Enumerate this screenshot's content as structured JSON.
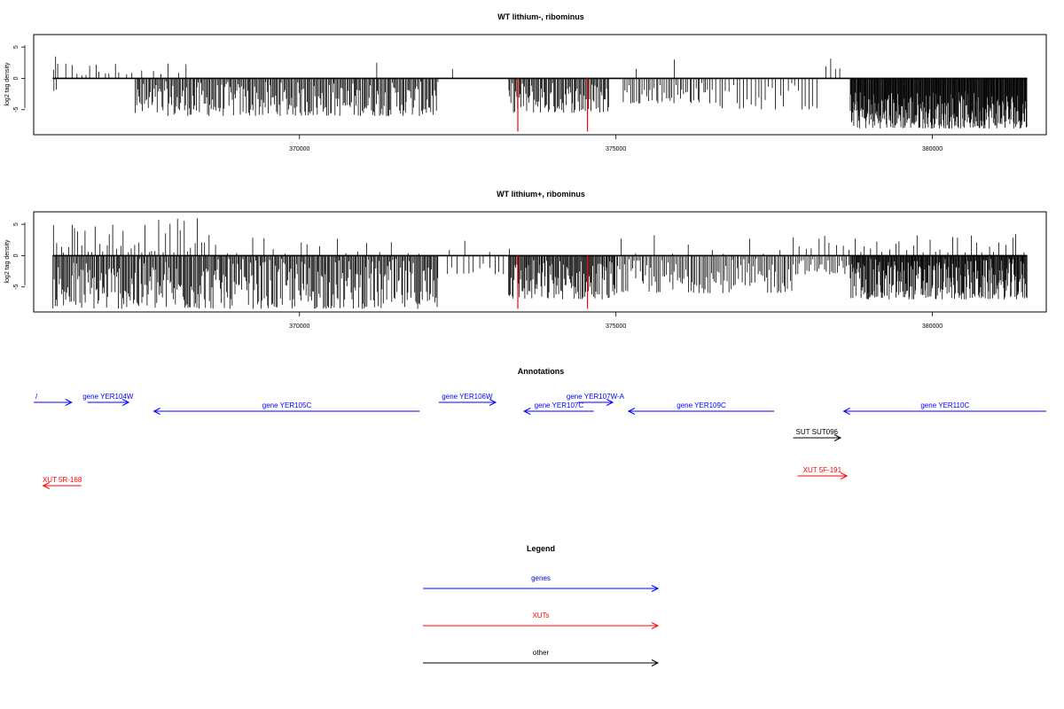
{
  "chart_data": [
    {
      "type": "bar",
      "title": "WT lithium-, ribominus",
      "ylabel": "log2 tag density",
      "xlim": [
        365800,
        381800
      ],
      "ylim": [
        -9,
        7
      ],
      "x_ticks": [
        370000,
        375000,
        380000
      ],
      "y_ticks": [
        -5,
        0,
        5
      ],
      "y_tick_labels": [
        "-5",
        "0",
        "5"
      ],
      "baseline_x": [
        366100,
        381500
      ],
      "red_markers": [
        {
          "x": 373450,
          "y": -8.5
        },
        {
          "x": 374550,
          "y": -8.5
        }
      ],
      "positive_segments": [
        {
          "x0": 366100,
          "x1": 366200,
          "count": 3,
          "min": 1,
          "max": 3.5
        },
        {
          "x0": 366300,
          "x1": 367200,
          "count": 12,
          "min": 0.3,
          "max": 2.8
        },
        {
          "x0": 367200,
          "x1": 368300,
          "count": 8,
          "min": 0.5,
          "max": 2.8
        },
        {
          "x0": 371200,
          "x1": 371250,
          "count": 1,
          "min": 2.5,
          "max": 2.6
        },
        {
          "x0": 372400,
          "x1": 372450,
          "count": 1,
          "min": 1.5,
          "max": 1.6
        },
        {
          "x0": 375300,
          "x1": 375350,
          "count": 1,
          "min": 1.5,
          "max": 1.6
        },
        {
          "x0": 375900,
          "x1": 375950,
          "count": 1,
          "min": 3,
          "max": 3.2
        },
        {
          "x0": 378300,
          "x1": 378600,
          "count": 4,
          "min": 1.5,
          "max": 3.3
        }
      ],
      "negative_segments": [
        {
          "x0": 366100,
          "x1": 366200,
          "count": 2,
          "min": -2,
          "max": -0.5
        },
        {
          "x0": 367400,
          "x1": 372200,
          "count": 260,
          "min": -6,
          "max": -0.5
        },
        {
          "x0": 373300,
          "x1": 374900,
          "count": 90,
          "min": -5.5,
          "max": -0.5
        },
        {
          "x0": 375100,
          "x1": 376500,
          "count": 45,
          "min": -4,
          "max": -0.5
        },
        {
          "x0": 376500,
          "x1": 378200,
          "count": 30,
          "min": -5,
          "max": -0.5
        },
        {
          "x0": 378700,
          "x1": 381500,
          "count": 300,
          "min": -8,
          "max": -2
        }
      ]
    },
    {
      "type": "bar",
      "title": "WT lithium+, ribominus",
      "ylabel": "log2 tag density",
      "xlim": [
        365800,
        381800
      ],
      "ylim": [
        -9,
        7
      ],
      "x_ticks": [
        370000,
        375000,
        380000
      ],
      "y_ticks": [
        -5,
        0,
        5
      ],
      "y_tick_labels": [
        "-5",
        "0",
        "5"
      ],
      "baseline_x": [
        366100,
        381500
      ],
      "red_markers": [
        {
          "x": 373450,
          "y": -8.5
        },
        {
          "x": 374550,
          "y": -8.5
        }
      ],
      "positive_segments": [
        {
          "x0": 366100,
          "x1": 368600,
          "count": 45,
          "min": 0.5,
          "max": 6
        },
        {
          "x0": 368600,
          "x1": 372000,
          "count": 18,
          "min": 0.3,
          "max": 3
        },
        {
          "x0": 372200,
          "x1": 373500,
          "count": 4,
          "min": 0.5,
          "max": 2.5
        },
        {
          "x0": 375000,
          "x1": 377800,
          "count": 10,
          "min": 0.3,
          "max": 3.5
        },
        {
          "x0": 377800,
          "x1": 381500,
          "count": 40,
          "min": 0.5,
          "max": 3.5
        }
      ],
      "negative_segments": [
        {
          "x0": 366100,
          "x1": 372200,
          "count": 360,
          "min": -8.5,
          "max": -0.5
        },
        {
          "x0": 372300,
          "x1": 373300,
          "count": 12,
          "min": -3,
          "max": -0.5
        },
        {
          "x0": 373300,
          "x1": 375000,
          "count": 120,
          "min": -7,
          "max": -0.5
        },
        {
          "x0": 375000,
          "x1": 377800,
          "count": 110,
          "min": -6,
          "max": -0.5
        },
        {
          "x0": 377800,
          "x1": 378700,
          "count": 30,
          "min": -3,
          "max": -0.5
        },
        {
          "x0": 378700,
          "x1": 381500,
          "count": 260,
          "min": -7,
          "max": -0.5
        }
      ]
    }
  ],
  "annotations": {
    "title": "Annotations",
    "items": [
      {
        "label": "/",
        "kind": "gene",
        "strand": "+",
        "start": 365800,
        "end": 366400,
        "row": 1
      },
      {
        "label": "gene YER104W",
        "kind": "gene",
        "strand": "+",
        "start": 366650,
        "end": 367300,
        "row": 1
      },
      {
        "label": "gene YER105C",
        "kind": "gene",
        "strand": "-",
        "start": 367700,
        "end": 371900,
        "row": 2
      },
      {
        "label": "gene YER106W",
        "kind": "gene",
        "strand": "+",
        "start": 372200,
        "end": 373100,
        "row": 1
      },
      {
        "label": "gene YER107W-A",
        "kind": "gene",
        "strand": "+",
        "start": 374400,
        "end": 374950,
        "row": 1
      },
      {
        "label": "gene YER107C",
        "kind": "gene",
        "strand": "-",
        "start": 373550,
        "end": 374650,
        "row": 2
      },
      {
        "label": "gene YER109C",
        "kind": "gene",
        "strand": "-",
        "start": 375200,
        "end": 377500,
        "row": 2
      },
      {
        "label": "gene YER110C",
        "kind": "gene",
        "strand": "-",
        "start": 378600,
        "end": 381800,
        "row": 2
      },
      {
        "label": "SUT SUT096",
        "kind": "other",
        "strand": "+",
        "start": 377800,
        "end": 378550,
        "row": 3
      },
      {
        "label": "XUT 5R-168",
        "kind": "xut",
        "strand": "-",
        "start": 365950,
        "end": 366550,
        "row": 4
      },
      {
        "label": "XUT 5F-191",
        "kind": "xut",
        "strand": "+",
        "start": 377870,
        "end": 378650,
        "row": 5
      }
    ]
  },
  "legend": {
    "title": "Legend",
    "items": [
      {
        "label": "genes",
        "kind": "gene"
      },
      {
        "label": "XUTs",
        "kind": "xut"
      },
      {
        "label": "other",
        "kind": "other"
      }
    ]
  },
  "colors": {
    "gene": "#0000ff",
    "xut": "#ff0000",
    "other": "#000000",
    "marker": "#ff0000",
    "bar": "#000000"
  }
}
